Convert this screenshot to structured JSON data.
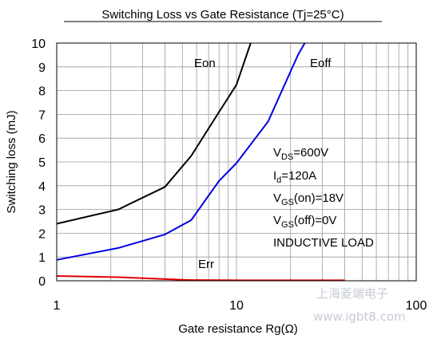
{
  "chart_data": {
    "type": "line",
    "title": "Switching Loss vs Gate Resistance (Tj=25°C)",
    "xlabel": "Gate resistance Rg(Ω)",
    "ylabel": "Switching loss (mJ)",
    "x_scale": "log",
    "xlim": [
      1,
      100
    ],
    "ylim": [
      0,
      10
    ],
    "grid": true,
    "x_ticks": [
      1,
      10,
      100
    ],
    "y_ticks": [
      0,
      1,
      2,
      3,
      4,
      5,
      6,
      7,
      8,
      9,
      10
    ],
    "series": [
      {
        "name": "Eon",
        "color": "#000000",
        "x": [
          1,
          2.2,
          4,
          5.6,
          8,
          10,
          12
        ],
        "y": [
          2.4,
          3.0,
          3.95,
          5.25,
          7.1,
          8.25,
          10.0
        ]
      },
      {
        "name": "Eoff",
        "color": "#0000e0",
        "x": [
          1,
          2.2,
          4,
          5.6,
          8,
          10,
          15,
          22,
          24
        ],
        "y": [
          0.88,
          1.38,
          1.95,
          2.55,
          4.2,
          4.95,
          6.7,
          9.5,
          10.0
        ]
      },
      {
        "name": "Err",
        "color": "#e00000",
        "x": [
          1,
          2.2,
          4,
          5.6,
          10,
          22,
          40
        ],
        "y": [
          0.2,
          0.15,
          0.07,
          0.03,
          0.02,
          0.02,
          0.02
        ]
      }
    ],
    "annotations": {
      "line1_main": "V",
      "line1_sub": "DS",
      "line1_rest": "=600V",
      "line2_main": "I",
      "line2_sub": "d",
      "line2_rest": "=120A",
      "line3_main": "V",
      "line3_sub": "GS",
      "line3_rest": "(on)=18V",
      "line4_main": "V",
      "line4_sub": "GS",
      "line4_rest": "(off)=0V",
      "line5": "INDUCTIVE LOAD"
    }
  },
  "watermark": {
    "cn": "上海菱端电子",
    "url": "www.igbt8.com"
  }
}
